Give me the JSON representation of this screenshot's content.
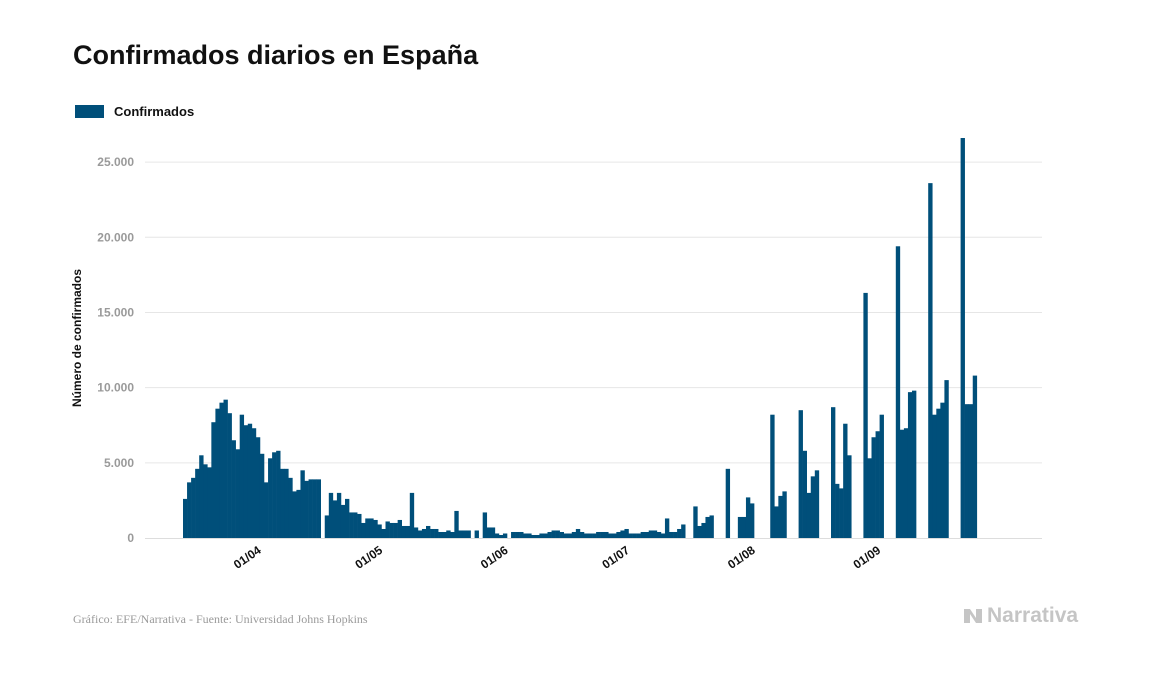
{
  "title": "Confirmados diarios en España",
  "legend_label": "Confirmados",
  "credit": "Gráfico: EFE/Narrativa - Fuente: Universidad Johns Hopkins",
  "brand": "Narrativa",
  "colors": {
    "bar": "#004f7a",
    "grid": "#e6e6e6",
    "tick": "#9a9a9a",
    "brand": "#c5c5c5"
  },
  "chart_data": {
    "type": "bar",
    "title": "Confirmados diarios en España",
    "ylabel": "Número de confirmados",
    "xlabel": "",
    "ylim": [
      0,
      27000
    ],
    "grid": true,
    "legend_position": "top-left",
    "y_ticks": [
      {
        "value": 0,
        "label": "0"
      },
      {
        "value": 5000,
        "label": "5.000"
      },
      {
        "value": 10000,
        "label": "10.000"
      },
      {
        "value": 15000,
        "label": "15.000"
      },
      {
        "value": 20000,
        "label": "20.000"
      },
      {
        "value": 25000,
        "label": "25.000"
      }
    ],
    "x_ticks": [
      {
        "date": "2020-04-01",
        "label": "01/04"
      },
      {
        "date": "2020-05-01",
        "label": "01/05"
      },
      {
        "date": "2020-06-01",
        "label": "01/06"
      },
      {
        "date": "2020-07-01",
        "label": "01/07"
      },
      {
        "date": "2020-08-01",
        "label": "01/08"
      },
      {
        "date": "2020-09-01",
        "label": "01/09"
      }
    ],
    "series": [
      {
        "name": "Confirmados",
        "x_start": "2020-03-15",
        "values": [
          2600,
          3700,
          4000,
          4600,
          5500,
          4900,
          4700,
          7700,
          8600,
          9000,
          9200,
          8300,
          6500,
          5900,
          8200,
          7500,
          7600,
          7300,
          6700,
          5600,
          3700,
          5300,
          5700,
          5800,
          4600,
          4600,
          4000,
          3100,
          3200,
          4500,
          3800,
          3900,
          3900,
          3900,
          0,
          1500,
          3000,
          2500,
          3000,
          2200,
          2600,
          1700,
          1700,
          1600,
          1000,
          1300,
          1300,
          1200,
          900,
          600,
          1100,
          1000,
          1000,
          1200,
          800,
          800,
          3000,
          700,
          500,
          600,
          800,
          600,
          600,
          400,
          400,
          500,
          400,
          1800,
          500,
          500,
          500,
          0,
          500,
          0,
          1700,
          700,
          700,
          300,
          200,
          300,
          0,
          400,
          400,
          400,
          300,
          300,
          200,
          200,
          300,
          300,
          400,
          500,
          500,
          400,
          300,
          300,
          400,
          600,
          400,
          300,
          300,
          300,
          400,
          400,
          400,
          300,
          300,
          400,
          500,
          600,
          300,
          300,
          300,
          400,
          400,
          500,
          500,
          400,
          300,
          1300,
          400,
          400,
          600,
          900,
          0,
          0,
          2100,
          800,
          1000,
          1400,
          1500,
          0,
          0,
          0,
          4600,
          0,
          0,
          1400,
          1400,
          2700,
          2300,
          0,
          0,
          0,
          0,
          8200,
          2100,
          2800,
          3100,
          0,
          0,
          0,
          8500,
          5800,
          3000,
          4100,
          4500,
          0,
          0,
          0,
          8700,
          3600,
          3300,
          7600,
          5500,
          0,
          0,
          0,
          16300,
          5300,
          6700,
          7100,
          8200,
          0,
          0,
          0,
          19400,
          7200,
          7300,
          9700,
          9800,
          0,
          0,
          0,
          23600,
          8200,
          8600,
          9000,
          10500,
          0,
          0,
          0,
          26600,
          8900,
          8900,
          10800
        ]
      }
    ]
  }
}
